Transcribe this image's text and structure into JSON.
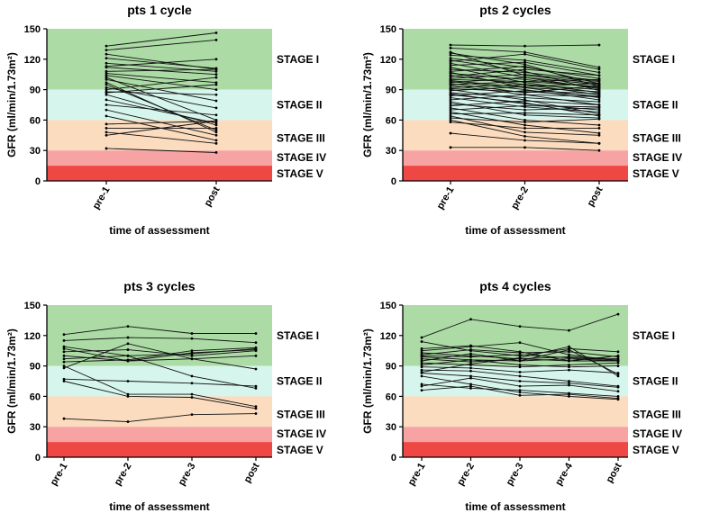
{
  "bands": [
    {
      "label": "STAGE I",
      "from": 90,
      "to": 150,
      "color": "#acdba6"
    },
    {
      "label": "STAGE II",
      "from": 60,
      "to": 90,
      "color": "#d6f5ec"
    },
    {
      "label": "STAGE III",
      "from": 30,
      "to": 60,
      "color": "#fbdcbf"
    },
    {
      "label": "STAGE IV",
      "from": 15,
      "to": 30,
      "color": "#f7a3a3"
    },
    {
      "label": "STAGE V",
      "from": 0,
      "to": 15,
      "color": "#ef4844"
    }
  ],
  "chart_data": [
    {
      "type": "line",
      "title": "pts 1 cycle",
      "xlabel": "time of assessment",
      "ylabel": "GFR (ml/min/1.73m²)",
      "ylim": [
        0,
        150
      ],
      "yticks": [
        0,
        30,
        60,
        90,
        120,
        150
      ],
      "categories": [
        "pre-1",
        "post"
      ],
      "series": [
        [
          133,
          146
        ],
        [
          129,
          139
        ],
        [
          125,
          110
        ],
        [
          121,
          111
        ],
        [
          116,
          108
        ],
        [
          112,
          105
        ],
        [
          108,
          110
        ],
        [
          106,
          97
        ],
        [
          104,
          90
        ],
        [
          102,
          60
        ],
        [
          100,
          79
        ],
        [
          97,
          48
        ],
        [
          95,
          50
        ],
        [
          92,
          72
        ],
        [
          90,
          102
        ],
        [
          88,
          85
        ],
        [
          85,
          55
        ],
        [
          80,
          57
        ],
        [
          75,
          65
        ],
        [
          70,
          45
        ],
        [
          64,
          40
        ],
        [
          56,
          59
        ],
        [
          52,
          52
        ],
        [
          48,
          37
        ],
        [
          45,
          59
        ],
        [
          32,
          28
        ],
        [
          113,
          120
        ],
        [
          87,
          95
        ]
      ]
    },
    {
      "type": "line",
      "title": "pts 2 cycles",
      "xlabel": "time of assessment",
      "ylabel": "GFR (ml/min/1.73m²)",
      "ylim": [
        0,
        150
      ],
      "yticks": [
        0,
        30,
        60,
        90,
        120,
        150
      ],
      "categories": [
        "pre-1",
        "pre-2",
        "post"
      ],
      "series": [
        [
          134,
          133,
          134
        ],
        [
          131,
          127,
          112
        ],
        [
          127,
          104,
          96
        ],
        [
          124,
          119,
          107
        ],
        [
          121,
          112,
          101
        ],
        [
          118,
          125,
          110
        ],
        [
          116,
          102,
          91
        ],
        [
          114,
          117,
          104
        ],
        [
          112,
          97,
          87
        ],
        [
          110,
          107,
          99
        ],
        [
          108,
          113,
          96
        ],
        [
          106,
          100,
          92
        ],
        [
          104,
          95,
          85
        ],
        [
          103,
          110,
          104
        ],
        [
          101,
          105,
          98
        ],
        [
          99,
          92,
          88
        ],
        [
          98,
          90,
          80
        ],
        [
          97,
          102,
          95
        ],
        [
          95,
          98,
          93
        ],
        [
          94,
          85,
          75
        ],
        [
          92,
          95,
          90
        ],
        [
          91,
          88,
          84
        ],
        [
          89,
          93,
          96
        ],
        [
          87,
          82,
          78
        ],
        [
          86,
          76,
          70
        ],
        [
          84,
          89,
          86
        ],
        [
          82,
          73,
          68
        ],
        [
          80,
          85,
          83
        ],
        [
          78,
          65,
          62
        ],
        [
          76,
          70,
          72
        ],
        [
          74,
          79,
          75
        ],
        [
          72,
          60,
          55
        ],
        [
          70,
          74,
          73
        ],
        [
          68,
          55,
          47
        ],
        [
          66,
          67,
          65
        ],
        [
          64,
          48,
          45
        ],
        [
          62,
          58,
          61
        ],
        [
          60,
          44,
          37
        ],
        [
          58,
          52,
          52
        ],
        [
          47,
          40,
          37
        ],
        [
          33,
          33,
          30
        ],
        [
          126,
          115,
          93
        ],
        [
          119,
          108,
          89
        ],
        [
          107,
          92,
          82
        ],
        [
          96,
          87,
          94
        ],
        [
          90,
          80,
          66
        ],
        [
          85,
          77,
          64
        ],
        [
          100,
          98,
          100
        ]
      ]
    },
    {
      "type": "line",
      "title": "pts 3 cycles",
      "xlabel": "time of assessment",
      "ylabel": "GFR (ml/min/1.73m²)",
      "ylim": [
        0,
        150
      ],
      "yticks": [
        0,
        30,
        60,
        90,
        120,
        150
      ],
      "categories": [
        "pre-1",
        "pre-2",
        "pre-3",
        "post"
      ],
      "series": [
        [
          121,
          129,
          122,
          122
        ],
        [
          115,
          118,
          117,
          113
        ],
        [
          109,
          100,
          102,
          107
        ],
        [
          107,
          95,
          103,
          106
        ],
        [
          104,
          106,
          100,
          105
        ],
        [
          100,
          95,
          97,
          87
        ],
        [
          94,
          96,
          105,
          108
        ],
        [
          90,
          62,
          62,
          50
        ],
        [
          88,
          112,
          97,
          100
        ],
        [
          77,
          75,
          73,
          70
        ],
        [
          75,
          60,
          59,
          48
        ],
        [
          38,
          35,
          42,
          43
        ],
        [
          97,
          100,
          80,
          68
        ]
      ]
    },
    {
      "type": "line",
      "title": "pts 4 cycles",
      "xlabel": "time of assessment",
      "ylabel": "GFR (ml/min/1.73m²)",
      "ylim": [
        0,
        150
      ],
      "yticks": [
        0,
        30,
        60,
        90,
        120,
        150
      ],
      "categories": [
        "pre-1",
        "pre-2",
        "pre-3",
        "pre-4",
        "post"
      ],
      "series": [
        [
          118,
          136,
          129,
          125,
          141
        ],
        [
          114,
          105,
          100,
          107,
          104
        ],
        [
          105,
          109,
          113,
          101,
          95
        ],
        [
          103,
          100,
          97,
          99,
          97
        ],
        [
          101,
          106,
          103,
          104,
          99
        ],
        [
          99,
          96,
          95,
          97,
          95
        ],
        [
          97,
          94,
          97,
          95,
          95
        ],
        [
          95,
          102,
          95,
          106,
          82
        ],
        [
          93,
          91,
          89,
          91,
          93
        ],
        [
          91,
          96,
          91,
          89,
          90
        ],
        [
          89,
          88,
          84,
          86,
          83
        ],
        [
          86,
          85,
          80,
          75,
          70
        ],
        [
          83,
          80,
          75,
          73,
          69
        ],
        [
          80,
          72,
          64,
          60,
          57
        ],
        [
          72,
          68,
          66,
          63,
          60
        ],
        [
          70,
          78,
          70,
          71,
          65
        ],
        [
          66,
          70,
          61,
          62,
          58
        ],
        [
          107,
          110,
          104,
          95,
          100
        ],
        [
          84,
          92,
          98,
          109,
          80
        ],
        [
          100,
          99,
          101,
          98,
          96
        ]
      ]
    }
  ]
}
